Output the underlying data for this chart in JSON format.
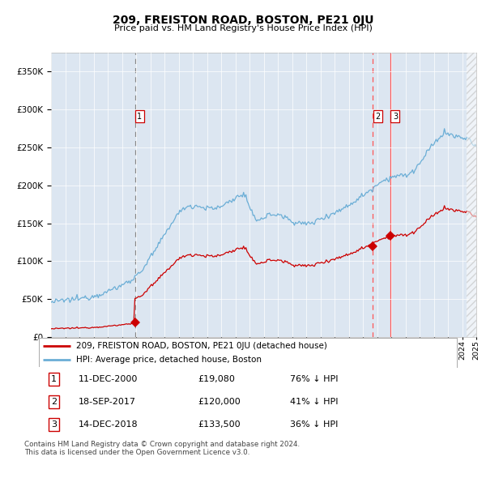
{
  "title": "209, FREISTON ROAD, BOSTON, PE21 0JU",
  "subtitle": "Price paid vs. HM Land Registry's House Price Index (HPI)",
  "legend_label_red": "209, FREISTON ROAD, BOSTON, PE21 0JU (detached house)",
  "legend_label_blue": "HPI: Average price, detached house, Boston",
  "sale_prices": [
    19080,
    120000,
    133500
  ],
  "sale_labels": [
    "1",
    "2",
    "3"
  ],
  "table_rows": [
    [
      "1",
      "11-DEC-2000",
      "£19,080",
      "76% ↓ HPI"
    ],
    [
      "2",
      "18-SEP-2017",
      "£120,000",
      "41% ↓ HPI"
    ],
    [
      "3",
      "14-DEC-2018",
      "£133,500",
      "36% ↓ HPI"
    ]
  ],
  "footer": "Contains HM Land Registry data © Crown copyright and database right 2024.\nThis data is licensed under the Open Government Licence v3.0.",
  "hpi_color": "#6baed6",
  "price_color": "#cc0000",
  "ylim": [
    0,
    375000
  ],
  "yticks": [
    0,
    50000,
    100000,
    150000,
    200000,
    250000,
    300000,
    350000
  ],
  "bg_color": "#dce6f1",
  "grid_color": "#ffffff",
  "xlim_start": 1995,
  "xlim_end": 2025,
  "sale_t": [
    2000.917,
    2017.708,
    2018.958
  ],
  "hatch_start": 2024.33
}
